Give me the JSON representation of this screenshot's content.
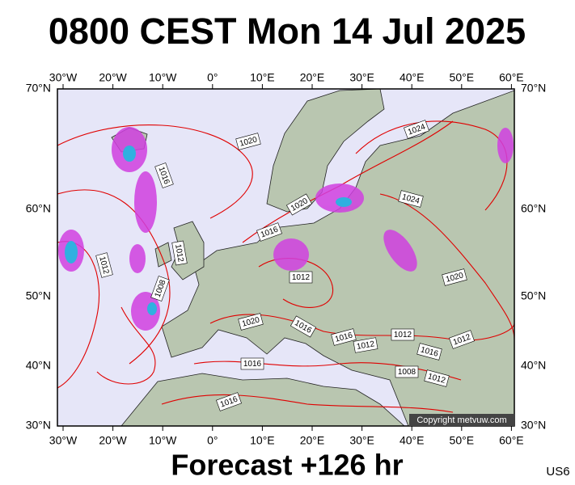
{
  "title": "0800 CEST Mon 14 Jul 2025",
  "map": {
    "top_labels": [
      "30°W",
      "20°W",
      "10°W",
      "0°",
      "10°E",
      "20°E",
      "30°E",
      "40°E",
      "50°E",
      "60°E"
    ],
    "bottom_labels": [
      "30°W",
      "20°W",
      "10°W",
      "0°",
      "10°E",
      "20°E",
      "30°E",
      "40°E",
      "50°E",
      "60°E"
    ],
    "left_labels": [
      "70°N",
      "60°N",
      "50°N",
      "40°N",
      "30°N"
    ],
    "right_labels": [
      "70°N",
      "60°N",
      "50°N",
      "40°N",
      "30°N"
    ],
    "isobar_labels": [
      "1020",
      "1016",
      "1012",
      "1012",
      "1008",
      "1020",
      "1016",
      "1012",
      "1024",
      "1024",
      "1020",
      "1020",
      "1016",
      "1016",
      "1012",
      "1012",
      "1016",
      "1012",
      "1008",
      "1012",
      "1016",
      "1016"
    ],
    "copyright": "Copyright metvuw.com"
  },
  "footer": {
    "forecast": "Forecast +126 hr",
    "code": "US6"
  }
}
